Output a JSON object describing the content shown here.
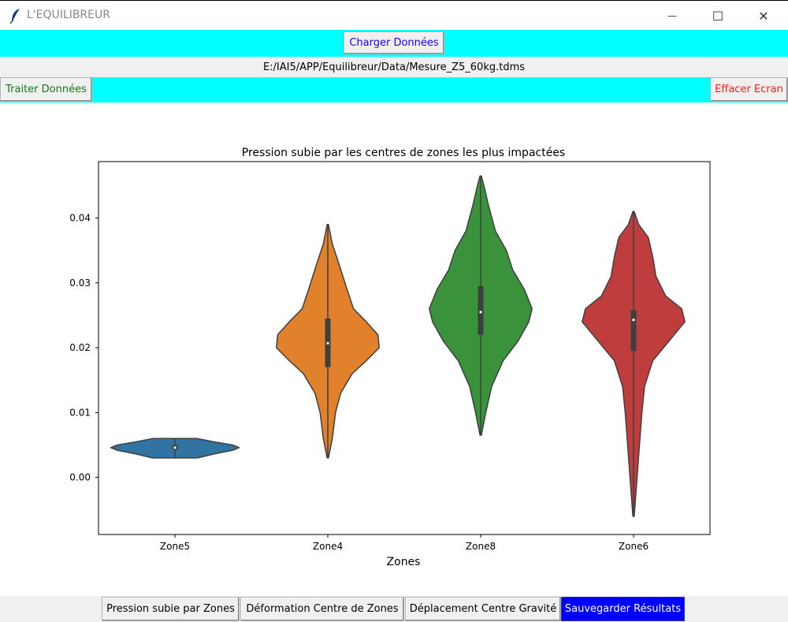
{
  "window": {
    "title": "L'EQUILIBREUR",
    "minimize_glyph": "—",
    "maximize_glyph": "☐",
    "close_glyph": "✕"
  },
  "toolbar": {
    "load_label": "Charger Données",
    "file_path": "E:/IAI5/APP/Equilibreur/Data/Mesure_Z5_60kg.tdms",
    "process_label": "Traiter Données",
    "clear_label": "Effacer Ecran"
  },
  "colors": {
    "toolbar_bg": "#00ffff",
    "load_text": "#1a00ff",
    "process_text": "#127b12",
    "clear_text": "#ff1a1a",
    "save_bg": "#0000ff"
  },
  "chart_data": {
    "type": "violin",
    "title": "Pression subie par les centres de zones les plus impactées",
    "xlabel": "Zones",
    "ylabel": "",
    "ylim": [
      -0.0088,
      0.0487
    ],
    "yticks": [
      0.0,
      0.01,
      0.02,
      0.03,
      0.04
    ],
    "ytick_labels": [
      "0.00",
      "0.01",
      "0.02",
      "0.03",
      "0.04"
    ],
    "categories": [
      "Zone5",
      "Zone4",
      "Zone8",
      "Zone6"
    ],
    "series": [
      {
        "category": "Zone5",
        "color": "#3274a1",
        "min": 0.003,
        "q1": 0.0043,
        "median": 0.0046,
        "q3": 0.005,
        "max": 0.006,
        "density": [
          [
            0.003,
            0.35
          ],
          [
            0.0036,
            0.6
          ],
          [
            0.0042,
            0.9
          ],
          [
            0.0046,
            1.0
          ],
          [
            0.005,
            0.9
          ],
          [
            0.0055,
            0.6
          ],
          [
            0.006,
            0.35
          ]
        ]
      },
      {
        "category": "Zone4",
        "color": "#e1812c",
        "min": 0.003,
        "q1": 0.017,
        "median": 0.0207,
        "q3": 0.0245,
        "max": 0.039,
        "density": [
          [
            0.003,
            0.01
          ],
          [
            0.006,
            0.07
          ],
          [
            0.01,
            0.12
          ],
          [
            0.013,
            0.2
          ],
          [
            0.016,
            0.38
          ],
          [
            0.018,
            0.6
          ],
          [
            0.02,
            0.8
          ],
          [
            0.022,
            0.78
          ],
          [
            0.024,
            0.6
          ],
          [
            0.026,
            0.4
          ],
          [
            0.029,
            0.3
          ],
          [
            0.033,
            0.17
          ],
          [
            0.036,
            0.07
          ],
          [
            0.039,
            0.01
          ]
        ]
      },
      {
        "category": "Zone8",
        "color": "#3a923a",
        "min": 0.0065,
        "q1": 0.022,
        "median": 0.0255,
        "q3": 0.0295,
        "max": 0.0465,
        "density": [
          [
            0.0065,
            0.01
          ],
          [
            0.01,
            0.08
          ],
          [
            0.014,
            0.17
          ],
          [
            0.018,
            0.35
          ],
          [
            0.021,
            0.58
          ],
          [
            0.024,
            0.75
          ],
          [
            0.026,
            0.8
          ],
          [
            0.029,
            0.68
          ],
          [
            0.032,
            0.5
          ],
          [
            0.035,
            0.4
          ],
          [
            0.038,
            0.23
          ],
          [
            0.042,
            0.12
          ],
          [
            0.045,
            0.05
          ],
          [
            0.0465,
            0.01
          ]
        ]
      },
      {
        "category": "Zone6",
        "color": "#c03d3e",
        "min": -0.006,
        "q1": 0.0195,
        "median": 0.0243,
        "q3": 0.0258,
        "max": 0.041,
        "density": [
          [
            -0.006,
            0.01
          ],
          [
            -0.002,
            0.04
          ],
          [
            0.002,
            0.07
          ],
          [
            0.006,
            0.1
          ],
          [
            0.01,
            0.13
          ],
          [
            0.014,
            0.17
          ],
          [
            0.018,
            0.3
          ],
          [
            0.021,
            0.55
          ],
          [
            0.024,
            0.8
          ],
          [
            0.026,
            0.75
          ],
          [
            0.028,
            0.5
          ],
          [
            0.031,
            0.35
          ],
          [
            0.034,
            0.3
          ],
          [
            0.037,
            0.23
          ],
          [
            0.039,
            0.08
          ],
          [
            0.041,
            0.01
          ]
        ]
      }
    ]
  },
  "bottom_buttons": {
    "pressure_label": "Pression subie par Zones",
    "deformation_label": "Déformation Centre de Zones",
    "gravity_label": "Déplacement Centre Gravité",
    "save_label": "Sauvegarder Résultats"
  }
}
